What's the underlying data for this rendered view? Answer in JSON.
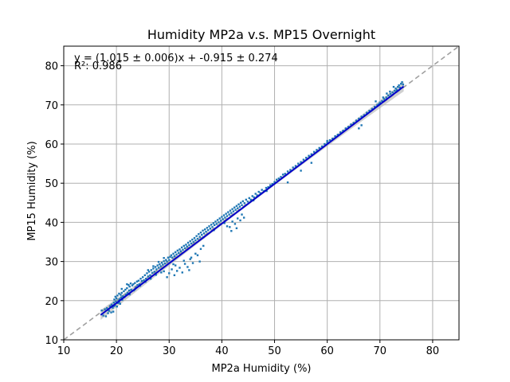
{
  "chart_data": {
    "type": "scatter",
    "title": "Humidity MP2a v.s. MP15 Overnight",
    "xlabel": "MP2a Humidity (%)",
    "ylabel": "MP15 Humidity (%)",
    "xlim": [
      10,
      85
    ],
    "ylim": [
      10,
      85
    ],
    "xticks": [
      10,
      20,
      30,
      40,
      50,
      60,
      70,
      80
    ],
    "yticks": [
      10,
      20,
      30,
      40,
      50,
      60,
      70,
      80
    ],
    "grid": true,
    "annotations": {
      "equation": "y = (1.015 ± 0.006)x + -0.915 ± 0.274",
      "r_squared": "R²: 0.986"
    },
    "fit": {
      "slope": 1.015,
      "intercept": -0.915,
      "x_range": [
        17,
        74.5
      ]
    },
    "identity_line": {
      "x_range": [
        10,
        85
      ]
    },
    "colors": {
      "points": "#1f77b4",
      "fit_line": "#0000cc",
      "identity_line": "#a0a0a0",
      "confidence_band": "#b0b0b0",
      "grid": "#b0b0b0"
    },
    "points": [
      [
        17.2,
        17.5
      ],
      [
        17.5,
        16.2
      ],
      [
        17.8,
        17.8
      ],
      [
        18.0,
        16.0
      ],
      [
        18.2,
        18.1
      ],
      [
        18.4,
        16.8
      ],
      [
        18.6,
        17.4
      ],
      [
        18.8,
        18.6
      ],
      [
        19.0,
        17.0
      ],
      [
        19.1,
        19.0
      ],
      [
        19.3,
        18.2
      ],
      [
        19.4,
        17.2
      ],
      [
        19.5,
        19.5
      ],
      [
        19.6,
        20.3
      ],
      [
        19.7,
        18.8
      ],
      [
        19.8,
        21.0
      ],
      [
        19.9,
        19.8
      ],
      [
        20.0,
        20.6
      ],
      [
        20.1,
        18.5
      ],
      [
        20.2,
        21.3
      ],
      [
        20.3,
        19.4
      ],
      [
        20.4,
        20.0
      ],
      [
        20.5,
        21.8
      ],
      [
        20.6,
        20.4
      ],
      [
        20.7,
        19.2
      ],
      [
        20.8,
        21.5
      ],
      [
        20.9,
        20.8
      ],
      [
        21.0,
        22.0
      ],
      [
        21.1,
        20.2
      ],
      [
        21.2,
        21.1
      ],
      [
        21.4,
        22.4
      ],
      [
        21.5,
        21.0
      ],
      [
        21.7,
        22.8
      ],
      [
        21.8,
        21.6
      ],
      [
        22.0,
        23.2
      ],
      [
        22.1,
        22.0
      ],
      [
        22.3,
        24.0
      ],
      [
        22.4,
        22.6
      ],
      [
        22.5,
        23.6
      ],
      [
        22.7,
        24.4
      ],
      [
        22.8,
        22.8
      ],
      [
        23.0,
        23.9
      ],
      [
        23.2,
        24.2
      ],
      [
        23.3,
        22.6
      ],
      [
        23.5,
        24.5
      ],
      [
        23.7,
        23.4
      ],
      [
        23.9,
        24.9
      ],
      [
        24.0,
        24.0
      ],
      [
        24.2,
        25.1
      ],
      [
        24.4,
        24.2
      ],
      [
        24.6,
        25.6
      ],
      [
        24.8,
        25.0
      ],
      [
        25.0,
        26.0
      ],
      [
        25.2,
        25.2
      ],
      [
        25.4,
        26.5
      ],
      [
        25.6,
        25.6
      ],
      [
        25.8,
        27.0
      ],
      [
        26.0,
        26.2
      ],
      [
        26.2,
        27.4
      ],
      [
        26.4,
        26.5
      ],
      [
        26.6,
        27.8
      ],
      [
        26.8,
        27.1
      ],
      [
        27.0,
        28.2
      ],
      [
        27.2,
        27.4
      ],
      [
        27.4,
        28.6
      ],
      [
        27.6,
        28.0
      ],
      [
        27.8,
        29.0
      ],
      [
        28.0,
        28.4
      ],
      [
        28.2,
        29.3
      ],
      [
        28.4,
        28.8
      ],
      [
        28.6,
        29.7
      ],
      [
        28.8,
        29.2
      ],
      [
        29.0,
        30.1
      ],
      [
        29.2,
        29.5
      ],
      [
        29.4,
        30.4
      ],
      [
        29.6,
        30.0
      ],
      [
        29.8,
        31.0
      ],
      [
        30.0,
        30.4
      ],
      [
        30.2,
        31.2
      ],
      [
        30.4,
        31.6
      ],
      [
        30.6,
        31.0
      ],
      [
        30.8,
        32.0
      ],
      [
        31.0,
        31.4
      ],
      [
        31.2,
        32.4
      ],
      [
        31.4,
        31.8
      ],
      [
        31.6,
        32.8
      ],
      [
        31.8,
        32.2
      ],
      [
        32.0,
        33.1
      ],
      [
        32.2,
        32.6
      ],
      [
        32.4,
        33.6
      ],
      [
        32.6,
        33.0
      ],
      [
        32.8,
        34.0
      ],
      [
        33.0,
        33.4
      ],
      [
        33.2,
        34.3
      ],
      [
        33.4,
        33.8
      ],
      [
        33.6,
        34.8
      ],
      [
        33.8,
        34.2
      ],
      [
        34.0,
        35.2
      ],
      [
        34.2,
        34.6
      ],
      [
        34.4,
        35.6
      ],
      [
        34.6,
        35.0
      ],
      [
        34.8,
        36.0
      ],
      [
        35.0,
        35.4
      ],
      [
        35.2,
        36.5
      ],
      [
        35.4,
        35.8
      ],
      [
        35.6,
        37.0
      ],
      [
        35.8,
        36.3
      ],
      [
        36.0,
        37.4
      ],
      [
        36.2,
        36.8
      ],
      [
        36.4,
        37.9
      ],
      [
        36.6,
        37.2
      ],
      [
        36.8,
        38.2
      ],
      [
        37.0,
        37.6
      ],
      [
        37.2,
        38.6
      ],
      [
        37.4,
        38.0
      ],
      [
        37.6,
        39.0
      ],
      [
        37.8,
        38.4
      ],
      [
        38.0,
        39.4
      ],
      [
        38.2,
        38.8
      ],
      [
        38.4,
        39.8
      ],
      [
        38.6,
        39.3
      ],
      [
        38.8,
        40.2
      ],
      [
        39.0,
        39.6
      ],
      [
        39.2,
        40.6
      ],
      [
        39.4,
        40.0
      ],
      [
        39.6,
        41.0
      ],
      [
        39.8,
        40.4
      ],
      [
        40.0,
        41.4
      ],
      [
        40.2,
        40.8
      ],
      [
        40.4,
        41.8
      ],
      [
        40.6,
        41.2
      ],
      [
        40.8,
        42.2
      ],
      [
        41.0,
        41.6
      ],
      [
        41.2,
        42.6
      ],
      [
        41.4,
        42.0
      ],
      [
        41.6,
        43.0
      ],
      [
        41.8,
        42.4
      ],
      [
        42.0,
        43.4
      ],
      [
        42.2,
        42.8
      ],
      [
        42.4,
        43.8
      ],
      [
        42.6,
        43.2
      ],
      [
        42.8,
        44.2
      ],
      [
        43.0,
        43.6
      ],
      [
        43.2,
        44.6
      ],
      [
        43.4,
        44.0
      ],
      [
        43.6,
        45.0
      ],
      [
        43.8,
        44.4
      ],
      [
        44.0,
        45.4
      ],
      [
        44.3,
        44.9
      ],
      [
        44.6,
        45.8
      ],
      [
        44.9,
        45.3
      ],
      [
        45.2,
        46.2
      ],
      [
        45.5,
        45.8
      ],
      [
        45.8,
        46.7
      ],
      [
        46.1,
        46.4
      ],
      [
        46.4,
        47.3
      ],
      [
        46.7,
        46.9
      ],
      [
        47.0,
        47.8
      ],
      [
        47.3,
        47.5
      ],
      [
        47.6,
        48.3
      ],
      [
        48.0,
        48.0
      ],
      [
        48.4,
        48.8
      ],
      [
        48.8,
        49.0
      ],
      [
        49.2,
        49.5
      ],
      [
        49.6,
        49.8
      ],
      [
        50.0,
        50.3
      ],
      [
        50.4,
        50.9
      ],
      [
        50.8,
        51.2
      ],
      [
        51.2,
        51.6
      ],
      [
        51.6,
        52.2
      ],
      [
        52.0,
        52.4
      ],
      [
        52.5,
        53.0
      ],
      [
        53.0,
        53.4
      ],
      [
        53.5,
        54.0
      ],
      [
        54.0,
        54.4
      ],
      [
        54.5,
        55.0
      ],
      [
        55.0,
        55.4
      ],
      [
        55.5,
        56.0
      ],
      [
        56.0,
        56.5
      ],
      [
        56.5,
        57.0
      ],
      [
        57.0,
        57.4
      ],
      [
        57.5,
        58.0
      ],
      [
        58.0,
        58.5
      ],
      [
        58.5,
        59.0
      ],
      [
        59.0,
        59.4
      ],
      [
        59.5,
        60.0
      ],
      [
        60.0,
        60.4
      ],
      [
        60.5,
        61.0
      ],
      [
        61.0,
        61.4
      ],
      [
        61.5,
        62.0
      ],
      [
        62.0,
        62.4
      ],
      [
        62.5,
        63.0
      ],
      [
        63.0,
        63.4
      ],
      [
        63.5,
        64.0
      ],
      [
        64.0,
        64.4
      ],
      [
        64.5,
        65.0
      ],
      [
        65.0,
        65.4
      ],
      [
        65.5,
        66.0
      ],
      [
        66.0,
        66.5
      ],
      [
        66.5,
        67.0
      ],
      [
        67.0,
        67.4
      ],
      [
        67.5,
        68.0
      ],
      [
        68.0,
        68.5
      ],
      [
        68.5,
        69.0
      ],
      [
        69.0,
        69.5
      ],
      [
        69.5,
        70.0
      ],
      [
        70.0,
        70.6
      ],
      [
        70.4,
        71.0
      ],
      [
        70.8,
        71.5
      ],
      [
        71.2,
        71.9
      ],
      [
        71.6,
        72.4
      ],
      [
        72.0,
        72.8
      ],
      [
        72.4,
        73.2
      ],
      [
        72.8,
        73.6
      ],
      [
        73.0,
        74.2
      ],
      [
        73.2,
        73.8
      ],
      [
        73.4,
        74.6
      ],
      [
        73.6,
        75.0
      ],
      [
        73.8,
        74.4
      ],
      [
        74.0,
        75.4
      ],
      [
        74.2,
        75.8
      ],
      [
        74.4,
        75.2
      ],
      [
        72.6,
        74.6
      ],
      [
        71.9,
        73.4
      ],
      [
        71.3,
        72.9
      ],
      [
        70.6,
        71.9
      ],
      [
        69.8,
        70.2
      ],
      [
        69.2,
        70.9
      ],
      [
        29.0,
        27.5
      ],
      [
        30.0,
        27.0
      ],
      [
        30.5,
        28.0
      ],
      [
        31.0,
        26.5
      ],
      [
        31.5,
        27.6
      ],
      [
        32.0,
        28.4
      ],
      [
        32.5,
        27.2
      ],
      [
        33.0,
        29.4
      ],
      [
        33.5,
        28.6
      ],
      [
        34.0,
        30.6
      ],
      [
        34.5,
        29.6
      ],
      [
        35.0,
        32.0
      ],
      [
        29.6,
        26.0
      ],
      [
        31.2,
        29.0
      ],
      [
        32.8,
        30.2
      ],
      [
        34.2,
        31.0
      ],
      [
        35.4,
        31.6
      ],
      [
        36.0,
        33.2
      ],
      [
        36.5,
        34.0
      ],
      [
        33.8,
        27.8
      ],
      [
        41.0,
        39.0
      ],
      [
        41.5,
        38.8
      ],
      [
        42.0,
        40.2
      ],
      [
        42.5,
        39.6
      ],
      [
        43.0,
        41.0
      ],
      [
        43.5,
        40.5
      ],
      [
        41.8,
        37.8
      ],
      [
        42.8,
        38.5
      ],
      [
        43.8,
        42.0
      ],
      [
        44.2,
        41.2
      ],
      [
        35.8,
        30.0
      ],
      [
        30.8,
        29.3
      ],
      [
        28.5,
        27.2
      ],
      [
        27.5,
        26.6
      ],
      [
        26.5,
        25.6
      ],
      [
        25.5,
        24.8
      ],
      [
        24.5,
        23.8
      ],
      [
        23.5,
        22.9
      ],
      [
        22.5,
        21.6
      ],
      [
        21.5,
        20.9
      ],
      [
        20.5,
        19.6
      ],
      [
        19.5,
        18.6
      ],
      [
        18.5,
        17.6
      ],
      [
        21.0,
        23.0
      ],
      [
        22.0,
        24.2
      ],
      [
        52.5,
        50.2
      ],
      [
        55.0,
        53.2
      ],
      [
        57.0,
        55.2
      ],
      [
        60.0,
        60.8
      ],
      [
        66.0,
        64.0
      ],
      [
        66.5,
        64.8
      ],
      [
        36.5,
        36.2
      ],
      [
        38.5,
        38.0
      ],
      [
        40.5,
        39.8
      ],
      [
        46.0,
        45.6
      ],
      [
        48.5,
        48.0
      ],
      [
        26.0,
        27.8
      ],
      [
        27.0,
        28.8
      ],
      [
        28.0,
        29.9
      ],
      [
        29.0,
        30.9
      ]
    ]
  }
}
